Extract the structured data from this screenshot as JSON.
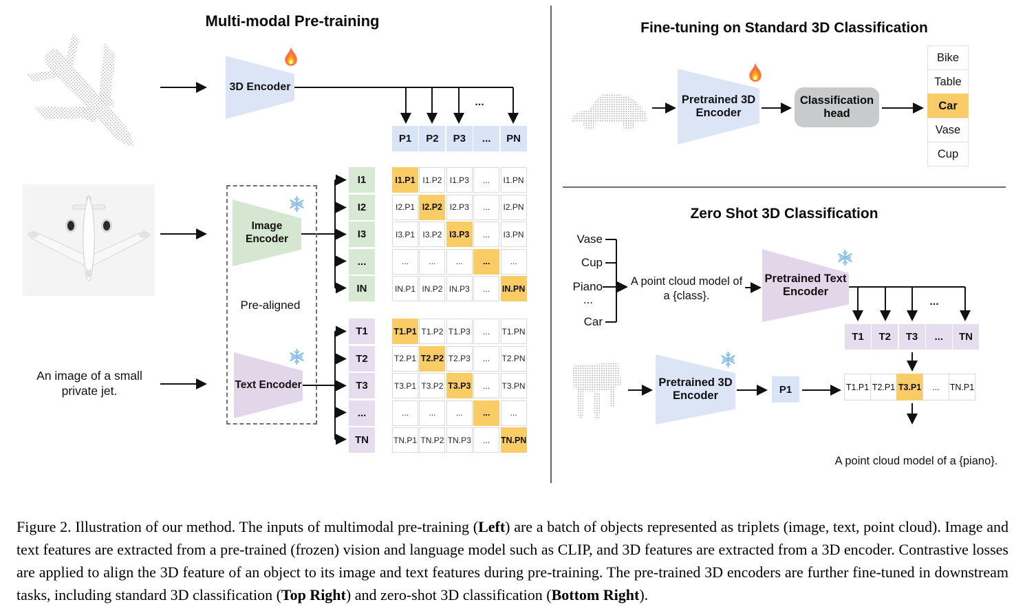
{
  "left": {
    "title": "Multi-modal Pre-training",
    "encoder3d_label": "3D Encoder",
    "image_encoder_label": "Image Encoder",
    "text_encoder_label": "Text Encoder",
    "pre_aligned": "Pre-aligned",
    "text_input": "An image of a small private jet.",
    "dots": "...",
    "p_row": [
      "P1",
      "P2",
      "P3",
      "...",
      "PN"
    ],
    "i_labels": [
      "I1",
      "I2",
      "I3",
      "...",
      "IN"
    ],
    "t_labels": [
      "T1",
      "T2",
      "T3",
      "...",
      "TN"
    ],
    "i_matrix": {
      "highlight": "diagonal",
      "rows": [
        [
          "I1.P1",
          "I1.P2",
          "I1.P3",
          "...",
          "I1.PN"
        ],
        [
          "I2.P1",
          "I2.P2",
          "I2.P3",
          "...",
          "I2.PN"
        ],
        [
          "I3.P1",
          "I3.P2",
          "I3.P3",
          "...",
          "I3.PN"
        ],
        [
          "...",
          "...",
          "...",
          "...",
          "..."
        ],
        [
          "IN.P1",
          "IN.P2",
          "IN.P3",
          "...",
          "IN.PN"
        ]
      ]
    },
    "t_matrix": {
      "highlight": "diagonal",
      "rows": [
        [
          "T1.P1",
          "T1.P2",
          "T1.P3",
          "...",
          "T1.PN"
        ],
        [
          "T2.P1",
          "T2.P2",
          "T2.P3",
          "...",
          "T2.PN"
        ],
        [
          "T3.P1",
          "T3.P2",
          "T3.P3",
          "...",
          "T3.PN"
        ],
        [
          "...",
          "...",
          "...",
          "...",
          "..."
        ],
        [
          "TN.P1",
          "TN.P2",
          "TN.P3",
          "...",
          "TN.PN"
        ]
      ]
    }
  },
  "top_right": {
    "title": "Fine-tuning on Standard 3D Classification",
    "encoder_label": "Pretrained 3D Encoder",
    "head_label": "Classification head",
    "classes": [
      "Bike",
      "Table",
      "Car",
      "Vase",
      "Cup"
    ],
    "highlight_index": 2
  },
  "bottom_right": {
    "title": "Zero Shot 3D Classification",
    "class_words": [
      "Vase",
      "Cup",
      "Piano",
      "...",
      "Car"
    ],
    "prompt": "A point cloud model of a {class}.",
    "text_encoder_label": "Pretrained Text Encoder",
    "encoder_label": "Pretrained 3D Encoder",
    "p1": "P1",
    "dots": "...",
    "t_row": [
      "T1",
      "T2",
      "T3",
      "...",
      "TN"
    ],
    "sim_row": [
      "T1.P1",
      "T2.P1",
      "T3.P1",
      "...",
      "TN.P1"
    ],
    "sim_highlight_index": 2,
    "result": "A point cloud model of a {piano}."
  },
  "caption": {
    "segments": [
      {
        "t": "Figure 2. Illustration of our method. The inputs of multimodal pre-training (",
        "b": 0
      },
      {
        "t": "Left",
        "b": 1
      },
      {
        "t": ") are a batch of objects represented as triplets (image, text, point cloud). Image and text features are extracted from a pre-trained (frozen) vision and language model such as CLIP, and 3D features are extracted from a 3D encoder. Contrastive losses are applied to align the 3D feature of an object to its image and text features during pre-training. The pre-trained 3D encoders are further fine-tuned in downstream tasks, including standard 3D classification (",
        "b": 0
      },
      {
        "t": "Top Right",
        "b": 1
      },
      {
        "t": ") and zero-shot 3D classification (",
        "b": 0
      },
      {
        "t": "Bottom Right",
        "b": 1
      },
      {
        "t": ").",
        "b": 0
      }
    ]
  },
  "colors": {
    "blue_cell": "#DAE4F7",
    "green_cell": "#D7E8D3",
    "purple_cell": "#E6DDEF",
    "trap_blue": "#DBE5F6",
    "trap_green": "#D5E7D0",
    "trap_purple": "#E3D6E9",
    "highlight_orange": "#F9CC66",
    "head_gray": "#C9CACB",
    "line_black": "#111111"
  }
}
